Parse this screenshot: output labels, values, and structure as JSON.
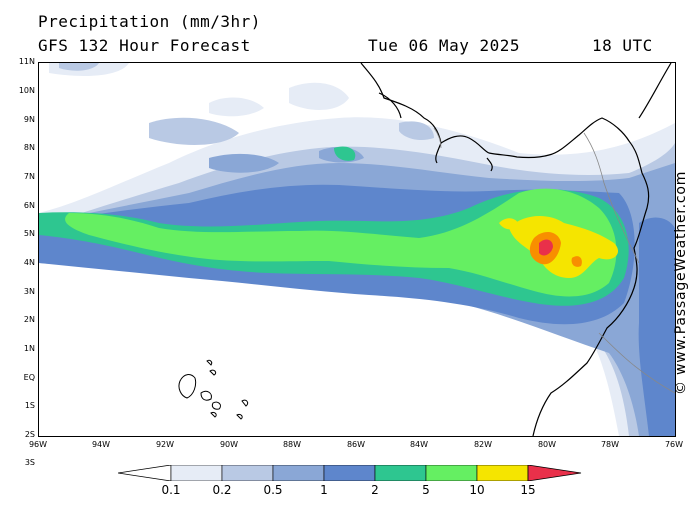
{
  "header": {
    "line1": "Precipitation (mm/3hr)",
    "line2_left": "GFS 132 Hour Forecast",
    "date": "Tue 06 May 2025",
    "time": "18 UTC"
  },
  "watermark": "© www.PassageWeather.com",
  "axes": {
    "lat_labels": [
      "11N",
      "10N",
      "9N",
      "8N",
      "7N",
      "6N",
      "5N",
      "4N",
      "3N",
      "2N",
      "1N",
      "EQ",
      "1S",
      "2S",
      "3S"
    ],
    "lon_labels": [
      "96W",
      "94W",
      "92W",
      "90W",
      "88W",
      "86W",
      "84W",
      "82W",
      "80W",
      "78W",
      "76W"
    ]
  },
  "legend": {
    "thresholds": [
      "0.1",
      "0.2",
      "0.5",
      "1",
      "2",
      "5",
      "10",
      "15"
    ],
    "colors": [
      "#ffffff",
      "#e6ecf6",
      "#b9c9e4",
      "#8aa7d6",
      "#5e86cc",
      "#2ec690",
      "#65ef62",
      "#f5e500",
      "#f88f00",
      "#e9304a"
    ]
  },
  "colors": {
    "land_outline": "#000000",
    "border_line": "#888888"
  }
}
